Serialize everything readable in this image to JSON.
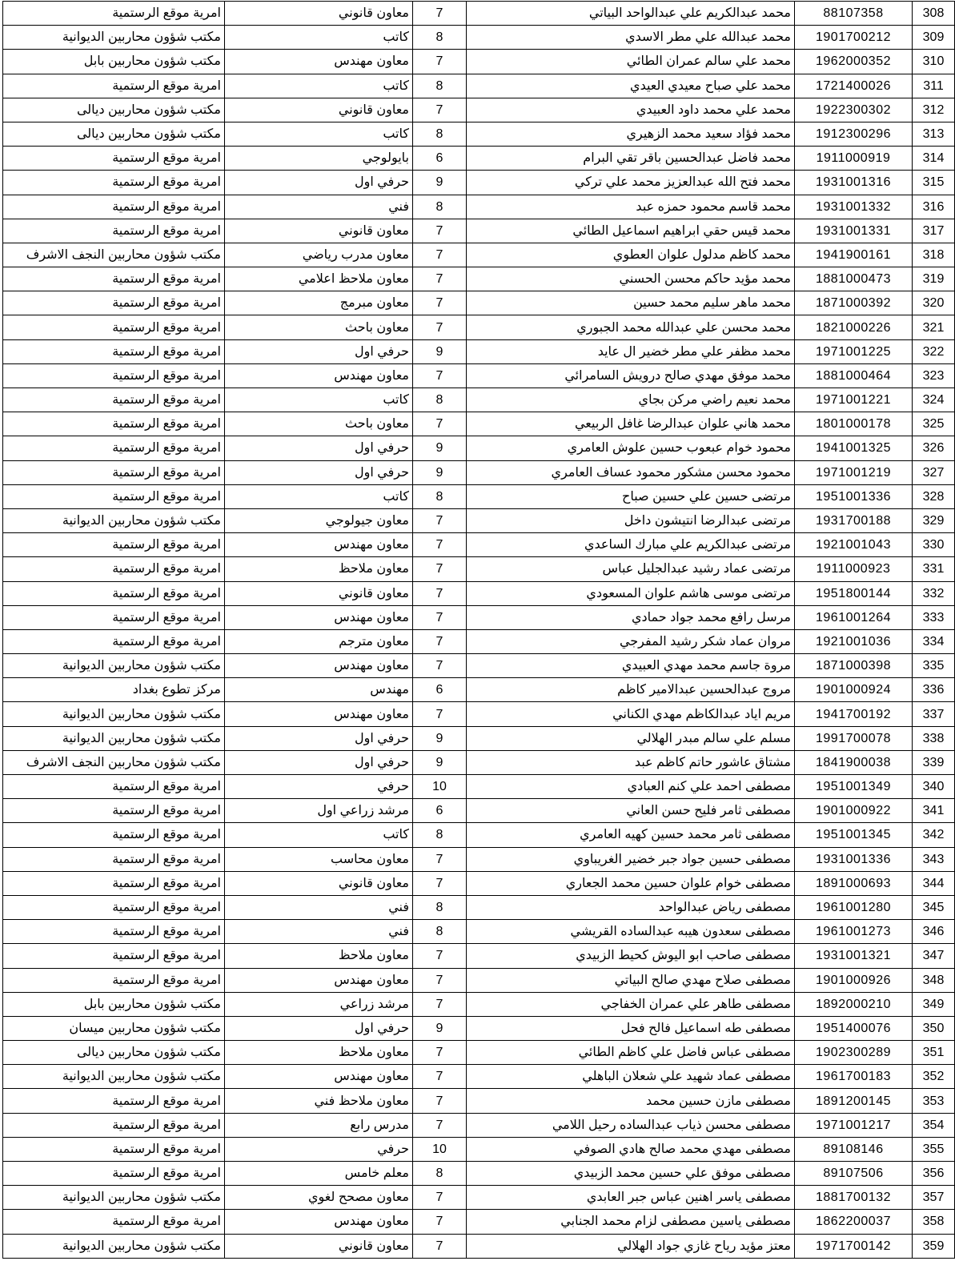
{
  "document": {
    "kind": "personnel-roster-table",
    "language": "arabic",
    "text_color": "#000000",
    "border_color": "#000000",
    "background_color": "#ffffff",
    "visible_row_range": [
      308,
      359
    ]
  },
  "table": {
    "columns": [
      {
        "key": "no",
        "name": "row-number",
        "align": "center"
      },
      {
        "key": "id",
        "name": "id-number",
        "align": "center"
      },
      {
        "key": "name",
        "name": "full-name",
        "align": "right"
      },
      {
        "key": "grade",
        "name": "grade-number",
        "align": "center"
      },
      {
        "key": "title",
        "name": "job-title",
        "align": "right"
      },
      {
        "key": "office",
        "name": "office",
        "align": "right"
      }
    ],
    "rows": [
      {
        "no": "308",
        "id": "88107358",
        "name": "محمد عبدالكريم علي عبدالواحد البياتي",
        "grade": "7",
        "title": "معاون قانوني",
        "office": "امرية موقع الرستمية"
      },
      {
        "no": "309",
        "id": "1901700212",
        "name": "محمد عبدالله علي مطر الاسدي",
        "grade": "8",
        "title": "كاتب",
        "office": "مكتب شؤون محاربين الديوانية"
      },
      {
        "no": "310",
        "id": "1962000352",
        "name": "محمد علي سالم عمران الطائي",
        "grade": "7",
        "title": "معاون مهندس",
        "office": "مكتب شؤون محاربين بابل"
      },
      {
        "no": "311",
        "id": "1721400026",
        "name": "محمد علي صباح معيدي العيدي",
        "grade": "8",
        "title": "كاتب",
        "office": "امرية موقع الرستمية"
      },
      {
        "no": "312",
        "id": "1922300302",
        "name": "محمد علي محمد داود العبيدي",
        "grade": "7",
        "title": "معاون قانوني",
        "office": "مكتب شؤون محاربين ديالى"
      },
      {
        "no": "313",
        "id": "1912300296",
        "name": "محمد فؤاد سعيد محمد الزهيري",
        "grade": "8",
        "title": "كاتب",
        "office": "مكتب شؤون محاربين ديالى"
      },
      {
        "no": "314",
        "id": "1911000919",
        "name": "محمد فاضل عبدالحسين باقر تقي البرام",
        "grade": "6",
        "title": "بايولوجي",
        "office": "امرية موقع الرستمية"
      },
      {
        "no": "315",
        "id": "1931001316",
        "name": "محمد فتح الله عبدالعزيز محمد علي تركي",
        "grade": "9",
        "title": "حرفي اول",
        "office": "امرية موقع الرستمية"
      },
      {
        "no": "316",
        "id": "1931001332",
        "name": "محمد قاسم محمود حمزه عبد",
        "grade": "8",
        "title": "فني",
        "office": "امرية موقع الرستمية"
      },
      {
        "no": "317",
        "id": "1931001331",
        "name": "محمد قيس حقي ابراهيم اسماعيل الطائي",
        "grade": "7",
        "title": "معاون قانوني",
        "office": "امرية موقع الرستمية"
      },
      {
        "no": "318",
        "id": "1941900161",
        "name": "محمد كاظم مدلول علوان العطوي",
        "grade": "7",
        "title": "معاون مدرب رياضي",
        "office": "مكتب شؤون محاربين النجف الاشرف"
      },
      {
        "no": "319",
        "id": "1881000473",
        "name": "محمد مؤيد حاكم محسن الحسني",
        "grade": "7",
        "title": "معاون ملاحظ اعلامي",
        "office": "امرية موقع الرستمية"
      },
      {
        "no": "320",
        "id": "1871000392",
        "name": "محمد ماهر سليم محمد حسين",
        "grade": "7",
        "title": "معاون مبرمج",
        "office": "امرية موقع الرستمية"
      },
      {
        "no": "321",
        "id": "1821000226",
        "name": "محمد محسن علي عبدالله محمد الجبوري",
        "grade": "7",
        "title": "معاون باحث",
        "office": "امرية موقع الرستمية"
      },
      {
        "no": "322",
        "id": "1971001225",
        "name": "محمد مظفر علي مطر خضير ال عايد",
        "grade": "9",
        "title": "حرفي اول",
        "office": "امرية موقع الرستمية"
      },
      {
        "no": "323",
        "id": "1881000464",
        "name": "محمد موفق مهدي صالح درويش السامرائي",
        "grade": "7",
        "title": "معاون مهندس",
        "office": "امرية موقع الرستمية"
      },
      {
        "no": "324",
        "id": "1971001221",
        "name": "محمد نعيم راضي مركن بجاي",
        "grade": "8",
        "title": "كاتب",
        "office": "امرية موقع الرستمية"
      },
      {
        "no": "325",
        "id": "1801000178",
        "name": "محمد هاني علوان عبدالرضا  غافل الربيعي",
        "grade": "7",
        "title": "معاون باحث",
        "office": "امرية موقع الرستمية"
      },
      {
        "no": "326",
        "id": "1941001325",
        "name": "محمود خوام عبعوب حسين علوش العامري",
        "grade": "9",
        "title": "حرفي اول",
        "office": "امرية موقع الرستمية"
      },
      {
        "no": "327",
        "id": "1971001219",
        "name": "محمود محسن مشكور محمود عساف العامري",
        "grade": "9",
        "title": "حرفي اول",
        "office": "امرية موقع الرستمية"
      },
      {
        "no": "328",
        "id": "1951001336",
        "name": "مرتضى حسين علي حسين صباح",
        "grade": "8",
        "title": "كاتب",
        "office": "امرية موقع الرستمية"
      },
      {
        "no": "329",
        "id": "1931700188",
        "name": "مرتضى عبدالرضا انتيشون داخل",
        "grade": "7",
        "title": "معاون جيولوجي",
        "office": "مكتب شؤون محاربين الديوانية"
      },
      {
        "no": "330",
        "id": "1921001043",
        "name": "مرتضى عبدالكريم علي مبارك  الساعدي",
        "grade": "7",
        "title": "معاون مهندس",
        "office": "امرية موقع الرستمية"
      },
      {
        "no": "331",
        "id": "1911000923",
        "name": "مرتضى عماد رشيد عبدالجليل عباس",
        "grade": "7",
        "title": "معاون ملاحظ",
        "office": "امرية موقع الرستمية"
      },
      {
        "no": "332",
        "id": "1951800144",
        "name": "مرتضى موسى هاشم علوان المسعودي",
        "grade": "7",
        "title": "معاون قانوني",
        "office": "امرية موقع الرستمية"
      },
      {
        "no": "333",
        "id": "1961001264",
        "name": "مرسل رافع محمد جواد حمادي",
        "grade": "7",
        "title": "معاون مهندس",
        "office": "امرية موقع الرستمية"
      },
      {
        "no": "334",
        "id": "1921001036",
        "name": "مروان عماد شكر رشيد المفرجي",
        "grade": "7",
        "title": "معاون مترجم",
        "office": "امرية موقع الرستمية"
      },
      {
        "no": "335",
        "id": "1871000398",
        "name": "مروة جاسم محمد مهدي العبيدي",
        "grade": "7",
        "title": "معاون مهندس",
        "office": "مكتب شؤون محاربين الديوانية"
      },
      {
        "no": "336",
        "id": "1901000924",
        "name": "مروج عبدالحسين عبدالامير كاظم",
        "grade": "6",
        "title": "مهندس",
        "office": "مركز تطوع بغداد"
      },
      {
        "no": "337",
        "id": "1941700192",
        "name": "مريم اياد عبدالكاظم مهدي الكناني",
        "grade": "7",
        "title": "معاون مهندس",
        "office": "مكتب شؤون محاربين الديوانية"
      },
      {
        "no": "338",
        "id": "1991700078",
        "name": "مسلم علي سالم مبدر الهلالي",
        "grade": "9",
        "title": "حرفي اول",
        "office": "مكتب شؤون محاربين الديوانية"
      },
      {
        "no": "339",
        "id": "1841900038",
        "name": "مشتاق عاشور حاتم كاظم عبد",
        "grade": "9",
        "title": "حرفي اول",
        "office": "مكتب شؤون محاربين النجف الاشرف"
      },
      {
        "no": "340",
        "id": "1951001349",
        "name": "مصطفى احمد علي كنم العبادي",
        "grade": "10",
        "title": "حرفي",
        "office": "امرية موقع الرستمية"
      },
      {
        "no": "341",
        "id": "1901000922",
        "name": "مصطفى ثامر فليح حسن العاني",
        "grade": "6",
        "title": "مرشد زراعي اول",
        "office": "امرية موقع الرستمية"
      },
      {
        "no": "342",
        "id": "1951001345",
        "name": "مصطفى ثامر محمد حسين كهيه العامري",
        "grade": "8",
        "title": "كاتب",
        "office": "امرية موقع الرستمية"
      },
      {
        "no": "343",
        "id": "1931001336",
        "name": "مصطفى حسين جواد جبر خضير الغريباوي",
        "grade": "7",
        "title": "معاون محاسب",
        "office": "امرية موقع الرستمية"
      },
      {
        "no": "344",
        "id": "1891000693",
        "name": "مصطفى خوام علوان حسين محمد الجعاري",
        "grade": "7",
        "title": "معاون قانوني",
        "office": "امرية موقع الرستمية"
      },
      {
        "no": "345",
        "id": "1961001280",
        "name": "مصطفى رياض عبدالواحد",
        "grade": "8",
        "title": "فني",
        "office": "امرية موقع الرستمية"
      },
      {
        "no": "346",
        "id": "1961001273",
        "name": "مصطفى سعدون هيبه عبدالساده القريشي",
        "grade": "8",
        "title": "فني",
        "office": "امرية موقع الرستمية"
      },
      {
        "no": "347",
        "id": "1931001321",
        "name": "مصطفى صاحب ابو اليوش كحيط الزبيدي",
        "grade": "7",
        "title": "معاون ملاحظ",
        "office": "امرية موقع الرستمية"
      },
      {
        "no": "348",
        "id": "1901000926",
        "name": "مصطفى صلاح مهدي صالح البياتي",
        "grade": "7",
        "title": "معاون مهندس",
        "office": "امرية موقع الرستمية"
      },
      {
        "no": "349",
        "id": "1892000210",
        "name": "مصطفى طاهر علي عمران الخفاجي",
        "grade": "7",
        "title": "مرشد زراعي",
        "office": "مكتب شؤون محاربين بابل"
      },
      {
        "no": "350",
        "id": "1951400076",
        "name": "مصطفى طه اسماعيل فالح فحل",
        "grade": "9",
        "title": "حرفي اول",
        "office": "مكتب شؤون محاربين ميسان"
      },
      {
        "no": "351",
        "id": "1902300289",
        "name": "مصطفى عباس فاضل علي كاظم الطائي",
        "grade": "7",
        "title": "معاون ملاحظ",
        "office": "مكتب شؤون محاربين ديالى"
      },
      {
        "no": "352",
        "id": "1961700183",
        "name": "مصطفى عماد شهيد علي شعلان الباهلي",
        "grade": "7",
        "title": "معاون مهندس",
        "office": "مكتب شؤون محاربين الديوانية"
      },
      {
        "no": "353",
        "id": "1891200145",
        "name": "مصطفى مازن حسين محمد",
        "grade": "7",
        "title": "معاون ملاحظ فني",
        "office": "امرية موقع الرستمية"
      },
      {
        "no": "354",
        "id": "1971001217",
        "name": "مصطفى محسن ذياب عبدالساده رحيل اللامي",
        "grade": "7",
        "title": "مدرس رابع",
        "office": "امرية موقع الرستمية"
      },
      {
        "no": "355",
        "id": "89108146",
        "name": "مصطفى مهدي محمد صالح هادي  الصوفي",
        "grade": "10",
        "title": "حرفي",
        "office": "امرية موقع الرستمية"
      },
      {
        "no": "356",
        "id": "89107506",
        "name": "مصطفى موفق علي حسين محمد الزبيدي",
        "grade": "8",
        "title": "معلم خامس",
        "office": "امرية موقع الرستمية"
      },
      {
        "no": "357",
        "id": "1881700132",
        "name": "مصطفى ياسر اهنين عباس جبر العابدي",
        "grade": "7",
        "title": "معاون مصحح لغوي",
        "office": "مكتب شؤون محاربين الديوانية"
      },
      {
        "no": "358",
        "id": "1862200037",
        "name": "مصطفى ياسين مصطفى لزام محمد الجنابي",
        "grade": "7",
        "title": "معاون مهندس",
        "office": "امرية موقع الرستمية"
      },
      {
        "no": "359",
        "id": "1971700142",
        "name": "معتز مؤيد رياح غازي جواد الهلالي",
        "grade": "7",
        "title": "معاون قانوني",
        "office": "مكتب شؤون محاربين الديوانية"
      }
    ]
  }
}
